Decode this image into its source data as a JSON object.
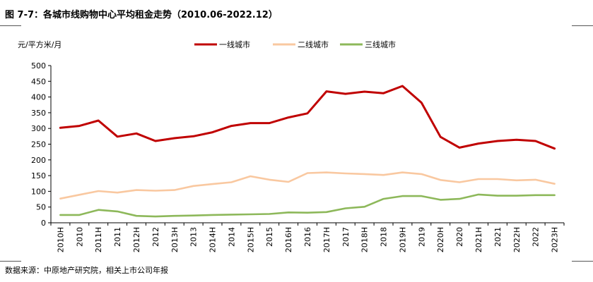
{
  "figure": {
    "title": "图 7-7：各城市线购物中心平均租金走势（2010.06-2022.12）",
    "source": "数据来源：中原地产研究院，相关上市公司年报"
  },
  "chart_data": {
    "type": "line",
    "ylabel": "元/平方米/月",
    "xlabel": "",
    "ylim": [
      0,
      500
    ],
    "yticks": [
      0,
      50,
      100,
      150,
      200,
      250,
      300,
      350,
      400,
      450,
      500
    ],
    "legend_position": "top",
    "categories": [
      "2010H",
      "2010",
      "2011H",
      "2011",
      "2012H",
      "2012",
      "2013H",
      "2013",
      "2014H",
      "2014",
      "2015H",
      "2015",
      "2016H",
      "2016",
      "2017H",
      "2017",
      "2018H",
      "2018",
      "2019H",
      "2019",
      "2020H",
      "2020",
      "2021H",
      "2021",
      "2022H",
      "2022",
      "2023H"
    ],
    "series": [
      {
        "name": "一线城市",
        "color": "#C00000",
        "values": [
          302,
          308,
          325,
          274,
          284,
          260,
          269,
          275,
          288,
          308,
          317,
          317,
          335,
          348,
          418,
          410,
          417,
          412,
          435,
          382,
          273,
          239,
          252,
          260,
          264,
          260,
          236
        ]
      },
      {
        "name": "二线城市",
        "color": "#F9C8A0",
        "values": [
          77,
          89,
          101,
          96,
          104,
          102,
          104,
          117,
          123,
          129,
          148,
          137,
          130,
          158,
          160,
          157,
          155,
          152,
          160,
          155,
          136,
          129,
          139,
          139,
          135,
          137,
          124
        ]
      },
      {
        "name": "三线城市",
        "color": "#8DB85A",
        "values": [
          25,
          25,
          41,
          36,
          22,
          20,
          22,
          23,
          25,
          26,
          27,
          28,
          33,
          32,
          34,
          46,
          51,
          76,
          85,
          85,
          73,
          76,
          90,
          86,
          86,
          88,
          88
        ]
      }
    ]
  }
}
